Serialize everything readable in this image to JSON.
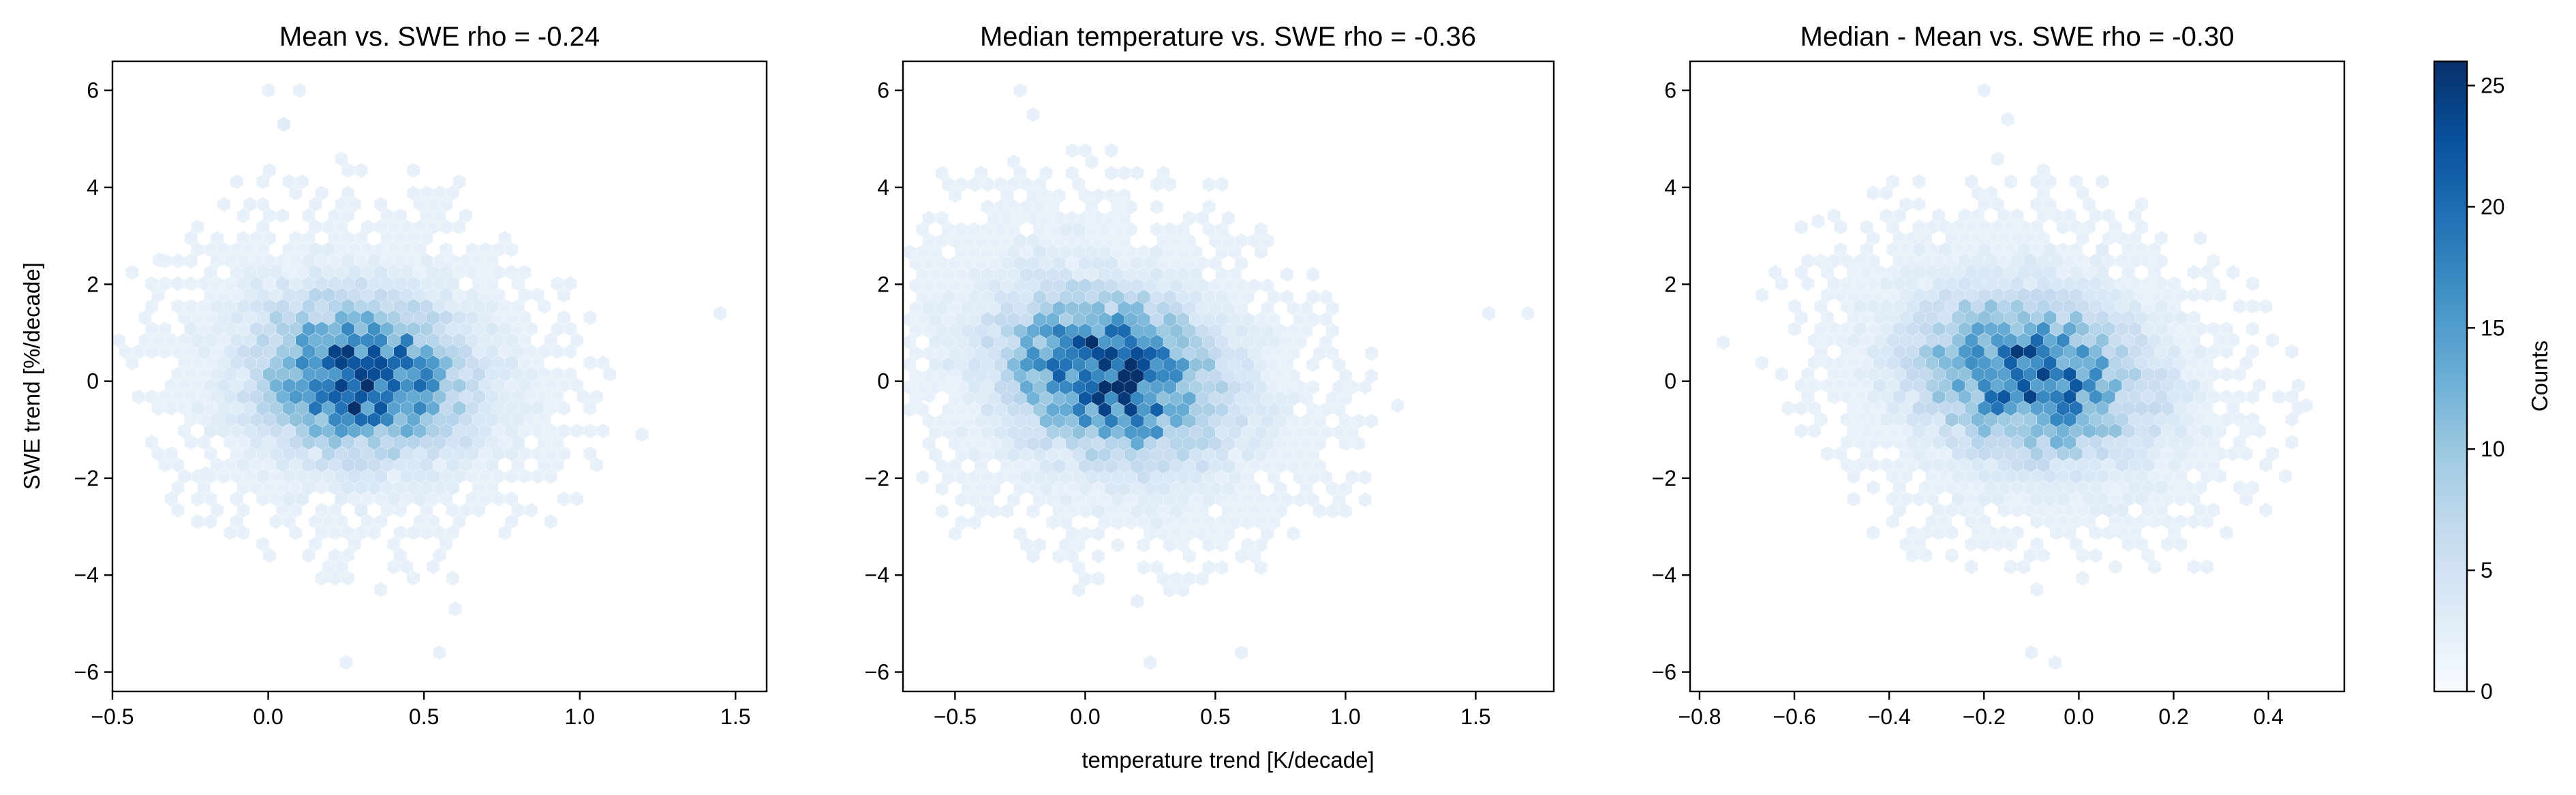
{
  "chart_data": {
    "type": "hexbin",
    "colormap": "Blues",
    "shared_ylabel": "SWE trend [%/decade]",
    "shared_xlabel": "temperature trend [K/decade]",
    "colorbar": {
      "label": "Counts",
      "range": [
        0,
        26
      ],
      "ticks": [
        0,
        5,
        10,
        15,
        20,
        25
      ]
    },
    "panels": [
      {
        "title": "Mean vs. SWE rho = -0.24",
        "xlim": [
          -0.5,
          1.6
        ],
        "ylim": [
          -6.4,
          6.6
        ],
        "xticks": [
          -0.5,
          0.0,
          0.5,
          1.0,
          1.5
        ],
        "xtick_labels": [
          "−0.5",
          "0.0",
          "0.5",
          "1.0",
          "1.5"
        ],
        "yticks": [
          -6,
          -4,
          -2,
          0,
          2,
          4,
          6
        ],
        "ytick_labels": [
          "−6",
          "−4",
          "−2",
          "0",
          "2",
          "4",
          "6"
        ],
        "cluster": {
          "cx": 0.3,
          "cy": 0.1,
          "sx": 0.22,
          "sy": 1.05,
          "slope": -0.35,
          "peak_count": 26
        },
        "bins": [
          [
            0.0,
            6.0,
            1
          ],
          [
            0.1,
            6.0,
            1
          ],
          [
            0.05,
            5.3,
            2
          ],
          [
            1.45,
            1.4,
            1
          ],
          [
            1.2,
            -1.1,
            1
          ],
          [
            0.25,
            -5.8,
            1
          ],
          [
            0.55,
            -5.6,
            1
          ],
          [
            0.6,
            -4.7,
            1
          ],
          [
            -0.35,
            2.5,
            1
          ],
          [
            -0.2,
            -1.9,
            1
          ]
        ]
      },
      {
        "title": "Median temperature vs. SWE rho = -0.36",
        "xlim": [
          -0.7,
          1.8
        ],
        "ylim": [
          -6.4,
          6.6
        ],
        "xticks": [
          -0.5,
          0.0,
          0.5,
          1.0,
          1.5
        ],
        "xtick_labels": [
          "−0.5",
          "0.0",
          "0.5",
          "1.0",
          "1.5"
        ],
        "yticks": [
          -6,
          -4,
          -2,
          0,
          2,
          4,
          6
        ],
        "ytick_labels": [
          "−6",
          "−4",
          "−2",
          "0",
          "2",
          "4",
          "6"
        ],
        "cluster": {
          "cx": 0.1,
          "cy": 0.15,
          "sx": 0.28,
          "sy": 1.1,
          "slope": -0.9,
          "peak_count": 26
        },
        "bins": [
          [
            -0.25,
            6.0,
            1
          ],
          [
            -0.2,
            5.5,
            1
          ],
          [
            1.55,
            1.4,
            1
          ],
          [
            1.7,
            1.4,
            1
          ],
          [
            0.25,
            -5.8,
            1
          ],
          [
            0.6,
            -5.6,
            1
          ],
          [
            -0.6,
            -0.3,
            1
          ],
          [
            1.2,
            -0.5,
            1
          ]
        ]
      },
      {
        "title": "Median - Mean vs. SWE rho = -0.30",
        "xlim": [
          -0.82,
          0.56
        ],
        "ylim": [
          -6.4,
          6.6
        ],
        "xticks": [
          -0.8,
          -0.6,
          -0.4,
          -0.2,
          0.0,
          0.2,
          0.4
        ],
        "xtick_labels": [
          "−0.8",
          "−0.6",
          "−0.4",
          "−0.2",
          "0.0",
          "0.2",
          "0.4"
        ],
        "yticks": [
          -6,
          -4,
          -2,
          0,
          2,
          4,
          6
        ],
        "ytick_labels": [
          "−6",
          "−4",
          "−2",
          "0",
          "2",
          "4",
          "6"
        ],
        "cluster": {
          "cx": -0.1,
          "cy": 0.1,
          "sx": 0.16,
          "sy": 1.1,
          "slope": -1.2,
          "peak_count": 23
        },
        "bins": [
          [
            -0.2,
            6.0,
            1
          ],
          [
            -0.15,
            5.4,
            1
          ],
          [
            -0.1,
            -5.6,
            1
          ],
          [
            -0.05,
            -5.8,
            1
          ],
          [
            -0.75,
            0.8,
            1
          ],
          [
            0.48,
            -0.5,
            1
          ],
          [
            -0.55,
            3.3,
            1
          ]
        ]
      }
    ]
  }
}
